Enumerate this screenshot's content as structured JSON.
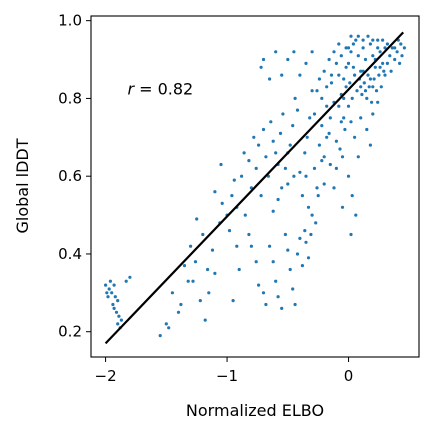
{
  "chart_data": {
    "type": "scatter",
    "title": "",
    "xlabel": "Normalized ELBO",
    "ylabel": "Global lDDT",
    "xlim": [
      -2.12,
      0.58
    ],
    "ylim": [
      0.135,
      1.012
    ],
    "xticks": [
      -2,
      -1,
      0
    ],
    "xtick_labels": [
      "−2",
      "−1",
      "0"
    ],
    "yticks": [
      0.2,
      0.4,
      0.6,
      0.8,
      1.0
    ],
    "ytick_labels": [
      "0.2",
      "0.4",
      "0.6",
      "0.8",
      "1.0"
    ],
    "grid": false,
    "point_color": "#1f77b4",
    "line_color": "#000000",
    "fit_line": {
      "x": [
        -2.0,
        0.45
      ],
      "y": [
        0.17,
        0.97
      ]
    },
    "annotation": {
      "text_prefix": "r",
      "text_value": " = 0.82",
      "x": -1.82,
      "y": 0.81
    },
    "points": [
      [
        -2.0,
        0.32
      ],
      [
        -1.98,
        0.29
      ],
      [
        -1.97,
        0.31
      ],
      [
        -1.95,
        0.3
      ],
      [
        -1.94,
        0.27
      ],
      [
        -1.93,
        0.26
      ],
      [
        -1.92,
        0.29
      ],
      [
        -1.91,
        0.25
      ],
      [
        -1.9,
        0.22
      ],
      [
        -1.89,
        0.24
      ],
      [
        -1.88,
        0.21
      ],
      [
        -1.96,
        0.33
      ],
      [
        -1.93,
        0.32
      ],
      [
        -1.9,
        0.28
      ],
      [
        -1.87,
        0.23
      ],
      [
        -1.99,
        0.3
      ],
      [
        -1.83,
        0.33
      ],
      [
        -1.8,
        0.34
      ],
      [
        -1.55,
        0.19
      ],
      [
        -1.5,
        0.22
      ],
      [
        -1.48,
        0.21
      ],
      [
        -1.45,
        0.3
      ],
      [
        -1.4,
        0.25
      ],
      [
        -1.35,
        0.37
      ],
      [
        -1.3,
        0.42
      ],
      [
        -1.28,
        0.33
      ],
      [
        -1.22,
        0.28
      ],
      [
        -1.18,
        0.23
      ],
      [
        -1.15,
        0.3
      ],
      [
        -1.1,
        0.35
      ],
      [
        -1.38,
        0.27
      ],
      [
        -1.32,
        0.33
      ],
      [
        -1.26,
        0.38
      ],
      [
        -1.2,
        0.45
      ],
      [
        -1.16,
        0.36
      ],
      [
        -1.12,
        0.41
      ],
      [
        -1.06,
        0.48
      ],
      [
        -1.04,
        0.53
      ],
      [
        -1.0,
        0.5
      ],
      [
        -0.98,
        0.46
      ],
      [
        -0.96,
        0.55
      ],
      [
        -0.94,
        0.59
      ],
      [
        -0.92,
        0.52
      ],
      [
        -1.25,
        0.49
      ],
      [
        -1.1,
        0.56
      ],
      [
        -1.05,
        0.63
      ],
      [
        -0.88,
        0.6
      ],
      [
        -0.86,
        0.66
      ],
      [
        -0.82,
        0.64
      ],
      [
        -0.8,
        0.57
      ],
      [
        -0.78,
        0.7
      ],
      [
        -0.76,
        0.62
      ],
      [
        -0.74,
        0.68
      ],
      [
        -0.72,
        0.55
      ],
      [
        -0.7,
        0.72
      ],
      [
        -0.68,
        0.65
      ],
      [
        -0.66,
        0.6
      ],
      [
        -0.64,
        0.74
      ],
      [
        -0.62,
        0.69
      ],
      [
        -0.6,
        0.66
      ],
      [
        -0.58,
        0.63
      ],
      [
        -0.56,
        0.71
      ],
      [
        -0.54,
        0.76
      ],
      [
        -0.52,
        0.62
      ],
      [
        -0.5,
        0.58
      ],
      [
        -0.48,
        0.68
      ],
      [
        -0.46,
        0.73
      ],
      [
        -0.44,
        0.8
      ],
      [
        -0.42,
        0.77
      ],
      [
        -0.4,
        0.61
      ],
      [
        -0.38,
        0.55
      ],
      [
        -0.36,
        0.66
      ],
      [
        -0.34,
        0.7
      ],
      [
        -0.32,
        0.75
      ],
      [
        -0.3,
        0.82
      ],
      [
        -0.65,
        0.42
      ],
      [
        -0.62,
        0.38
      ],
      [
        -0.6,
        0.33
      ],
      [
        -0.58,
        0.29
      ],
      [
        -0.55,
        0.26
      ],
      [
        -0.52,
        0.45
      ],
      [
        -0.5,
        0.41
      ],
      [
        -0.48,
        0.36
      ],
      [
        -0.46,
        0.31
      ],
      [
        -0.44,
        0.27
      ],
      [
        -0.42,
        0.4
      ],
      [
        -0.4,
        0.44
      ],
      [
        -0.38,
        0.37
      ],
      [
        -0.36,
        0.46
      ],
      [
        -0.35,
        0.43
      ],
      [
        -0.33,
        0.39
      ],
      [
        -0.31,
        0.45
      ],
      [
        -0.3,
        0.5
      ],
      [
        -0.28,
        0.62
      ],
      [
        -0.26,
        0.57
      ],
      [
        -0.24,
        0.68
      ],
      [
        -0.22,
        0.73
      ],
      [
        -0.2,
        0.65
      ],
      [
        -0.18,
        0.78
      ],
      [
        -0.16,
        0.71
      ],
      [
        -0.14,
        0.84
      ],
      [
        -0.12,
        0.79
      ],
      [
        -0.1,
        0.69
      ],
      [
        -0.08,
        0.86
      ],
      [
        -0.06,
        0.81
      ],
      [
        -0.04,
        0.75
      ],
      [
        -0.02,
        0.88
      ],
      [
        -0.28,
        0.76
      ],
      [
        -0.26,
        0.82
      ],
      [
        -0.24,
        0.85
      ],
      [
        -0.22,
        0.8
      ],
      [
        -0.2,
        0.87
      ],
      [
        -0.18,
        0.83
      ],
      [
        -0.16,
        0.9
      ],
      [
        -0.14,
        0.86
      ],
      [
        -0.12,
        0.92
      ],
      [
        -0.1,
        0.89
      ],
      [
        -0.08,
        0.94
      ],
      [
        -0.06,
        0.91
      ],
      [
        -0.04,
        0.85
      ],
      [
        -0.02,
        0.93
      ],
      [
        0.0,
        0.89
      ],
      [
        0.02,
        0.92
      ],
      [
        0.04,
        0.88
      ],
      [
        0.06,
        0.95
      ],
      [
        0.08,
        0.91
      ],
      [
        0.1,
        0.87
      ],
      [
        0.12,
        0.93
      ],
      [
        0.14,
        0.9
      ],
      [
        0.16,
        0.86
      ],
      [
        0.18,
        0.94
      ],
      [
        0.2,
        0.91
      ],
      [
        0.22,
        0.88
      ],
      [
        0.24,
        0.95
      ],
      [
        0.26,
        0.92
      ],
      [
        0.28,
        0.89
      ],
      [
        0.3,
        0.93
      ],
      [
        0.01,
        0.84
      ],
      [
        0.03,
        0.8
      ],
      [
        0.05,
        0.86
      ],
      [
        0.07,
        0.82
      ],
      [
        0.09,
        0.85
      ],
      [
        0.11,
        0.81
      ],
      [
        0.13,
        0.84
      ],
      [
        0.15,
        0.8
      ],
      [
        0.17,
        0.83
      ],
      [
        0.19,
        0.79
      ],
      [
        0.21,
        0.85
      ],
      [
        0.23,
        0.82
      ],
      [
        0.25,
        0.86
      ],
      [
        0.27,
        0.83
      ],
      [
        0.29,
        0.87
      ],
      [
        0.0,
        0.93
      ],
      [
        0.02,
        0.96
      ],
      [
        0.04,
        0.94
      ],
      [
        0.08,
        0.96
      ],
      [
        0.12,
        0.95
      ],
      [
        0.16,
        0.96
      ],
      [
        0.2,
        0.95
      ],
      [
        0.24,
        0.93
      ],
      [
        0.28,
        0.95
      ],
      [
        0.32,
        0.94
      ],
      [
        0.34,
        0.91
      ],
      [
        0.36,
        0.93
      ],
      [
        0.38,
        0.9
      ],
      [
        0.4,
        0.92
      ],
      [
        0.42,
        0.89
      ],
      [
        0.44,
        0.91
      ],
      [
        -0.6,
        0.92
      ],
      [
        -0.7,
        0.9
      ],
      [
        -0.72,
        0.88
      ],
      [
        -0.45,
        0.92
      ],
      [
        -0.4,
        0.86
      ],
      [
        -0.5,
        0.9
      ],
      [
        -0.55,
        0.86
      ],
      [
        -0.65,
        0.85
      ],
      [
        -0.3,
        0.92
      ],
      [
        -0.35,
        0.89
      ],
      [
        0.05,
        0.7
      ],
      [
        0.08,
        0.65
      ],
      [
        0.1,
        0.75
      ],
      [
        0.15,
        0.72
      ],
      [
        0.18,
        0.68
      ],
      [
        0.2,
        0.76
      ],
      [
        0.0,
        0.6
      ],
      [
        0.03,
        0.55
      ],
      [
        -0.05,
        0.65
      ],
      [
        -0.03,
        0.72
      ],
      [
        0.02,
        0.45
      ],
      [
        0.06,
        0.5
      ],
      [
        -0.85,
        0.5
      ],
      [
        -0.82,
        0.45
      ],
      [
        -0.8,
        0.42
      ],
      [
        -0.76,
        0.38
      ],
      [
        -0.74,
        0.32
      ],
      [
        -0.7,
        0.3
      ],
      [
        -0.68,
        0.27
      ],
      [
        -0.9,
        0.36
      ],
      [
        -0.92,
        0.42
      ],
      [
        -0.95,
        0.28
      ],
      [
        -0.35,
        0.6
      ],
      [
        -0.33,
        0.52
      ],
      [
        -0.27,
        0.48
      ],
      [
        -0.25,
        0.55
      ],
      [
        -0.2,
        0.58
      ],
      [
        -0.15,
        0.63
      ],
      [
        -0.12,
        0.57
      ],
      [
        -0.1,
        0.62
      ],
      [
        -0.07,
        0.67
      ],
      [
        -0.05,
        0.52
      ],
      [
        0.1,
        0.83
      ],
      [
        0.12,
        0.87
      ],
      [
        0.14,
        0.82
      ],
      [
        0.18,
        0.85
      ],
      [
        0.22,
        0.9
      ],
      [
        0.26,
        0.88
      ],
      [
        0.3,
        0.86
      ],
      [
        0.32,
        0.89
      ],
      [
        0.35,
        0.87
      ],
      [
        0.38,
        0.93
      ],
      [
        0.41,
        0.95
      ],
      [
        0.43,
        0.94
      ],
      [
        0.46,
        0.93
      ],
      [
        0.2,
        0.83
      ],
      [
        0.24,
        0.79
      ],
      [
        -0.08,
        0.78
      ],
      [
        -0.06,
        0.74
      ],
      [
        -0.04,
        0.8
      ],
      [
        -0.02,
        0.83
      ],
      [
        0.0,
        0.78
      ],
      [
        0.02,
        0.74
      ],
      [
        -0.15,
        0.75
      ],
      [
        -0.18,
        0.7
      ],
      [
        -0.22,
        0.64
      ],
      [
        -0.45,
        0.6
      ],
      [
        -0.5,
        0.66
      ],
      [
        -0.55,
        0.57
      ],
      [
        -0.58,
        0.54
      ],
      [
        -0.62,
        0.51
      ]
    ]
  }
}
